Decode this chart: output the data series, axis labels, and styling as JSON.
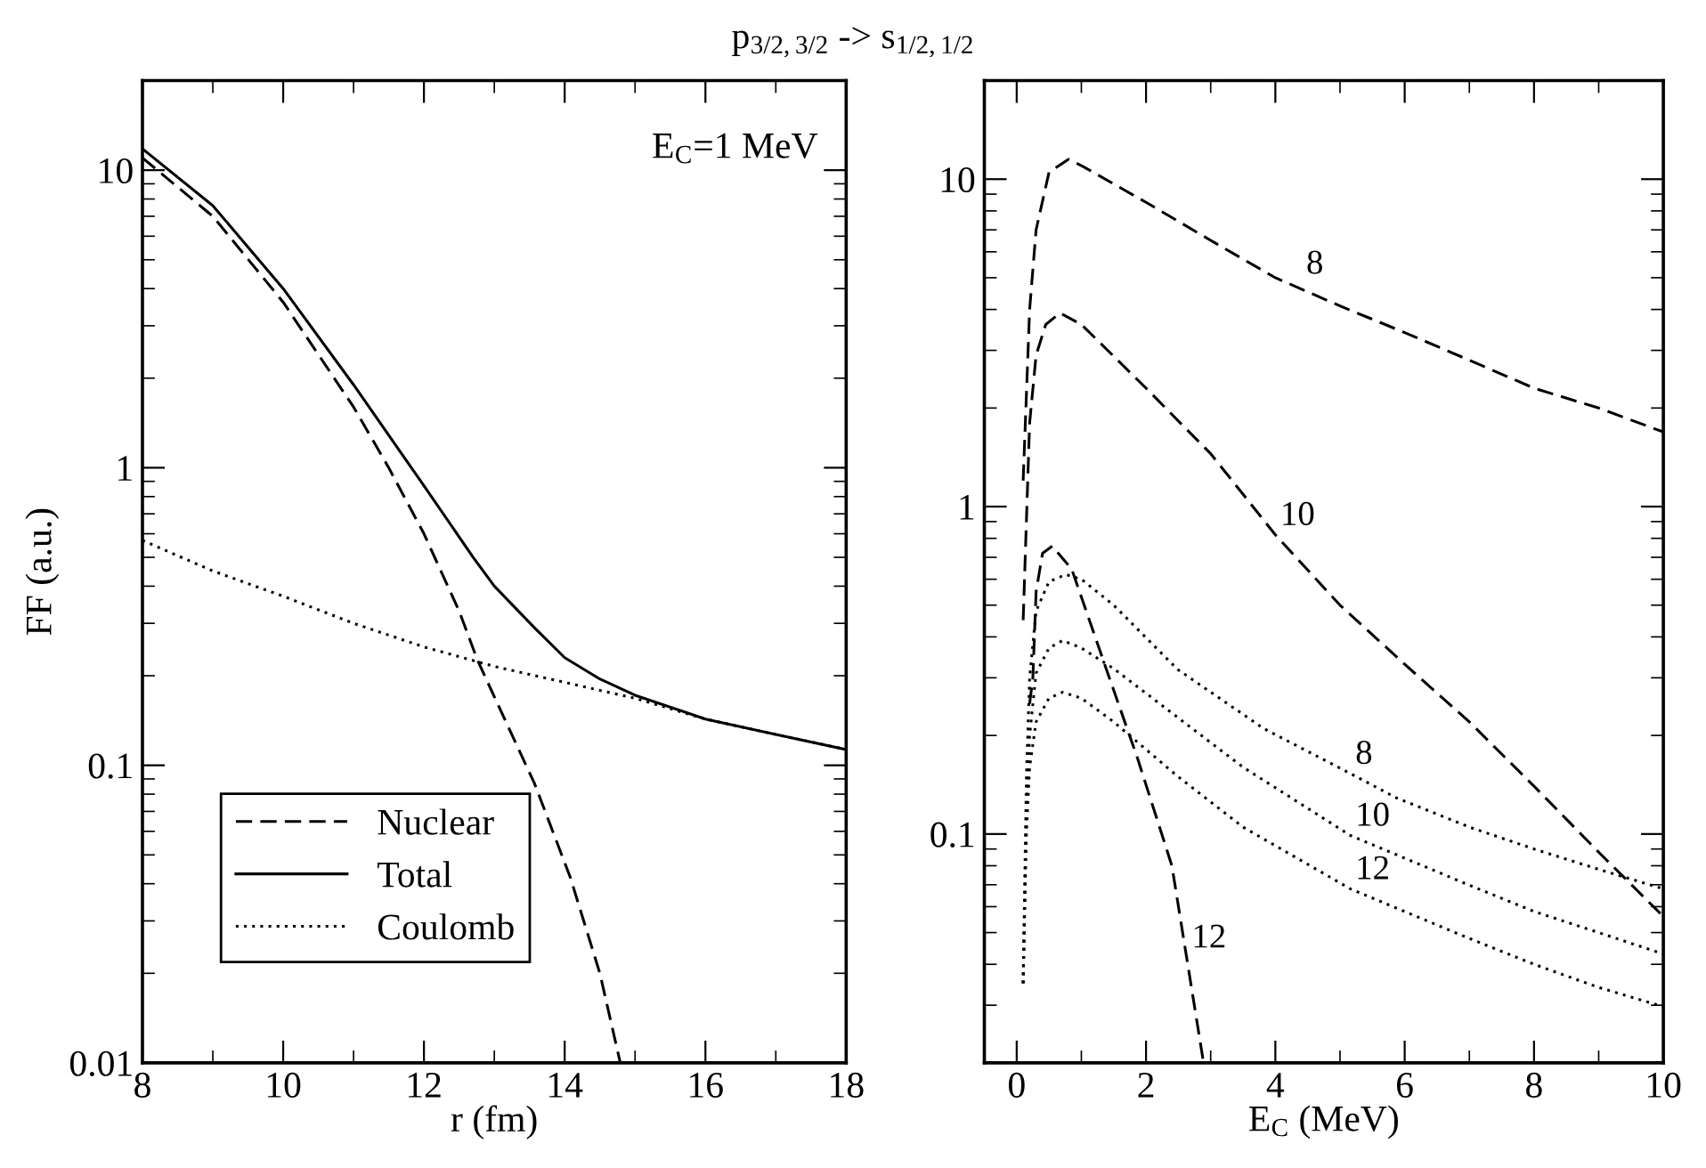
{
  "chart_data": [
    {
      "type": "line",
      "title": "p$_{3/2,3/2}$ -> s$_{1/2,1/2}$",
      "xlabel": "r (fm)",
      "ylabel": "FF (a.u.)",
      "log": "y",
      "xlim": [
        8,
        18
      ],
      "ylim": [
        0.01,
        20
      ],
      "xticks": [
        8,
        10,
        12,
        14,
        16,
        18
      ],
      "yticks": [
        0.01,
        0.1,
        1,
        10
      ],
      "grid": false,
      "legend": "bottom left",
      "marker": "none",
      "annotations": [
        "E$_{C}$=1 MeV"
      ],
      "series": [
        {
          "name": "Nuclear",
          "color": "#000000",
          "line_style": "dashed",
          "x": [
            8,
            9,
            10,
            11,
            11.5,
            12,
            12.5,
            12.76,
            13,
            13.57,
            14.08,
            14.5,
            14.79
          ],
          "values": [
            11.0,
            7.0,
            3.6,
            1.6,
            1.0,
            0.6,
            0.33,
            0.226,
            0.17,
            0.087,
            0.042,
            0.02,
            0.01
          ]
        },
        {
          "name": "Total",
          "color": "#000000",
          "line_style": "solid",
          "x": [
            8,
            9,
            10,
            11,
            12,
            12.7,
            13,
            13.57,
            14,
            14.5,
            15,
            16,
            17,
            18
          ],
          "values": [
            11.8,
            7.6,
            4.0,
            1.9,
            0.87,
            0.5,
            0.4,
            0.29,
            0.23,
            0.195,
            0.172,
            0.143,
            0.127,
            0.113
          ]
        },
        {
          "name": "Coulomb",
          "color": "#000000",
          "line_style": "dotted",
          "x": [
            8,
            9,
            10,
            11,
            12,
            13,
            14,
            15,
            16,
            17,
            18
          ],
          "values": [
            0.57,
            0.45,
            0.37,
            0.3,
            0.25,
            0.215,
            0.19,
            0.168,
            0.143,
            0.127,
            0.113
          ]
        }
      ]
    },
    {
      "type": "line",
      "xlabel": "E$_{C}$ (MeV)",
      "log": "y",
      "xlim": [
        -0.5,
        10
      ],
      "ylim": [
        0.02,
        20
      ],
      "xticks": [
        0,
        2,
        4,
        6,
        8,
        10
      ],
      "yticks": [
        0.1,
        1,
        10
      ],
      "grid": false,
      "marker": "none",
      "annotations": [
        {
          "text": "8",
          "x": 4.4,
          "y": 4.8
        },
        {
          "text": "10",
          "x": 4,
          "y": 0.82
        },
        {
          "text": "12",
          "x": 2.63,
          "y": 0.042
        },
        {
          "text": "8",
          "x": 5.16,
          "y": 0.153
        },
        {
          "text": "10",
          "x": 5.16,
          "y": 0.099
        },
        {
          "text": "12",
          "x": 5.16,
          "y": 0.068
        }
      ],
      "series": [
        {
          "color": "#000000",
          "line_style": "dashed",
          "x": [
            0.1,
            0.2,
            0.3,
            0.5,
            0.8,
            1,
            2,
            3,
            4,
            5,
            6,
            7,
            8,
            9,
            10
          ],
          "values": [
            1.2,
            4,
            7,
            10.5,
            11.5,
            11,
            8.5,
            6.5,
            5.0,
            4.1,
            3.4,
            2.8,
            2.3,
            2.0,
            1.69
          ]
        },
        {
          "color": "#000000",
          "line_style": "dashed",
          "x": [
            0.1,
            0.2,
            0.3,
            0.45,
            0.67,
            1,
            2,
            3,
            4,
            5,
            6,
            7,
            8,
            9,
            10
          ],
          "values": [
            0.45,
            1.8,
            2.9,
            3.6,
            3.9,
            3.6,
            2.3,
            1.45,
            0.82,
            0.5,
            0.33,
            0.22,
            0.14,
            0.088,
            0.056
          ]
        },
        {
          "color": "#000000",
          "line_style": "dashed",
          "x": [
            0.2,
            0.25,
            0.3,
            0.4,
            0.55,
            0.85,
            1.42,
            1.87,
            2.4,
            2.89
          ],
          "values": [
            0.25,
            0.3,
            0.55,
            0.72,
            0.757,
            0.645,
            0.305,
            0.17,
            0.08,
            0.02
          ]
        },
        {
          "color": "#000000",
          "line_style": "dotted",
          "x": [
            0.1,
            0.15,
            0.2,
            0.3,
            0.5,
            0.76,
            1,
            1.5,
            2.49,
            3.82,
            5.16,
            5.87,
            7,
            8,
            9,
            10
          ],
          "values": [
            0.035,
            0.15,
            0.3,
            0.48,
            0.59,
            0.62,
            0.6,
            0.5,
            0.318,
            0.21,
            0.153,
            0.129,
            0.105,
            0.09,
            0.078,
            0.068
          ]
        },
        {
          "color": "#000000",
          "line_style": "dotted",
          "x": [
            0.1,
            0.15,
            0.2,
            0.3,
            0.5,
            0.71,
            1,
            1.5,
            2.49,
            3.5,
            5.16,
            6.93,
            8,
            9,
            10
          ],
          "values": [
            0.035,
            0.12,
            0.2,
            0.31,
            0.37,
            0.39,
            0.37,
            0.32,
            0.227,
            0.16,
            0.099,
            0.0707,
            0.058,
            0.05,
            0.043
          ]
        },
        {
          "color": "#000000",
          "line_style": "dotted",
          "x": [
            0.1,
            0.15,
            0.2,
            0.3,
            0.5,
            0.71,
            1,
            1.5,
            2.49,
            3.5,
            5.16,
            6.93,
            8,
            9,
            10
          ],
          "values": [
            0.035,
            0.1,
            0.16,
            0.22,
            0.26,
            0.271,
            0.26,
            0.22,
            0.15,
            0.105,
            0.068,
            0.0486,
            0.04,
            0.034,
            0.0297
          ]
        }
      ]
    }
  ]
}
